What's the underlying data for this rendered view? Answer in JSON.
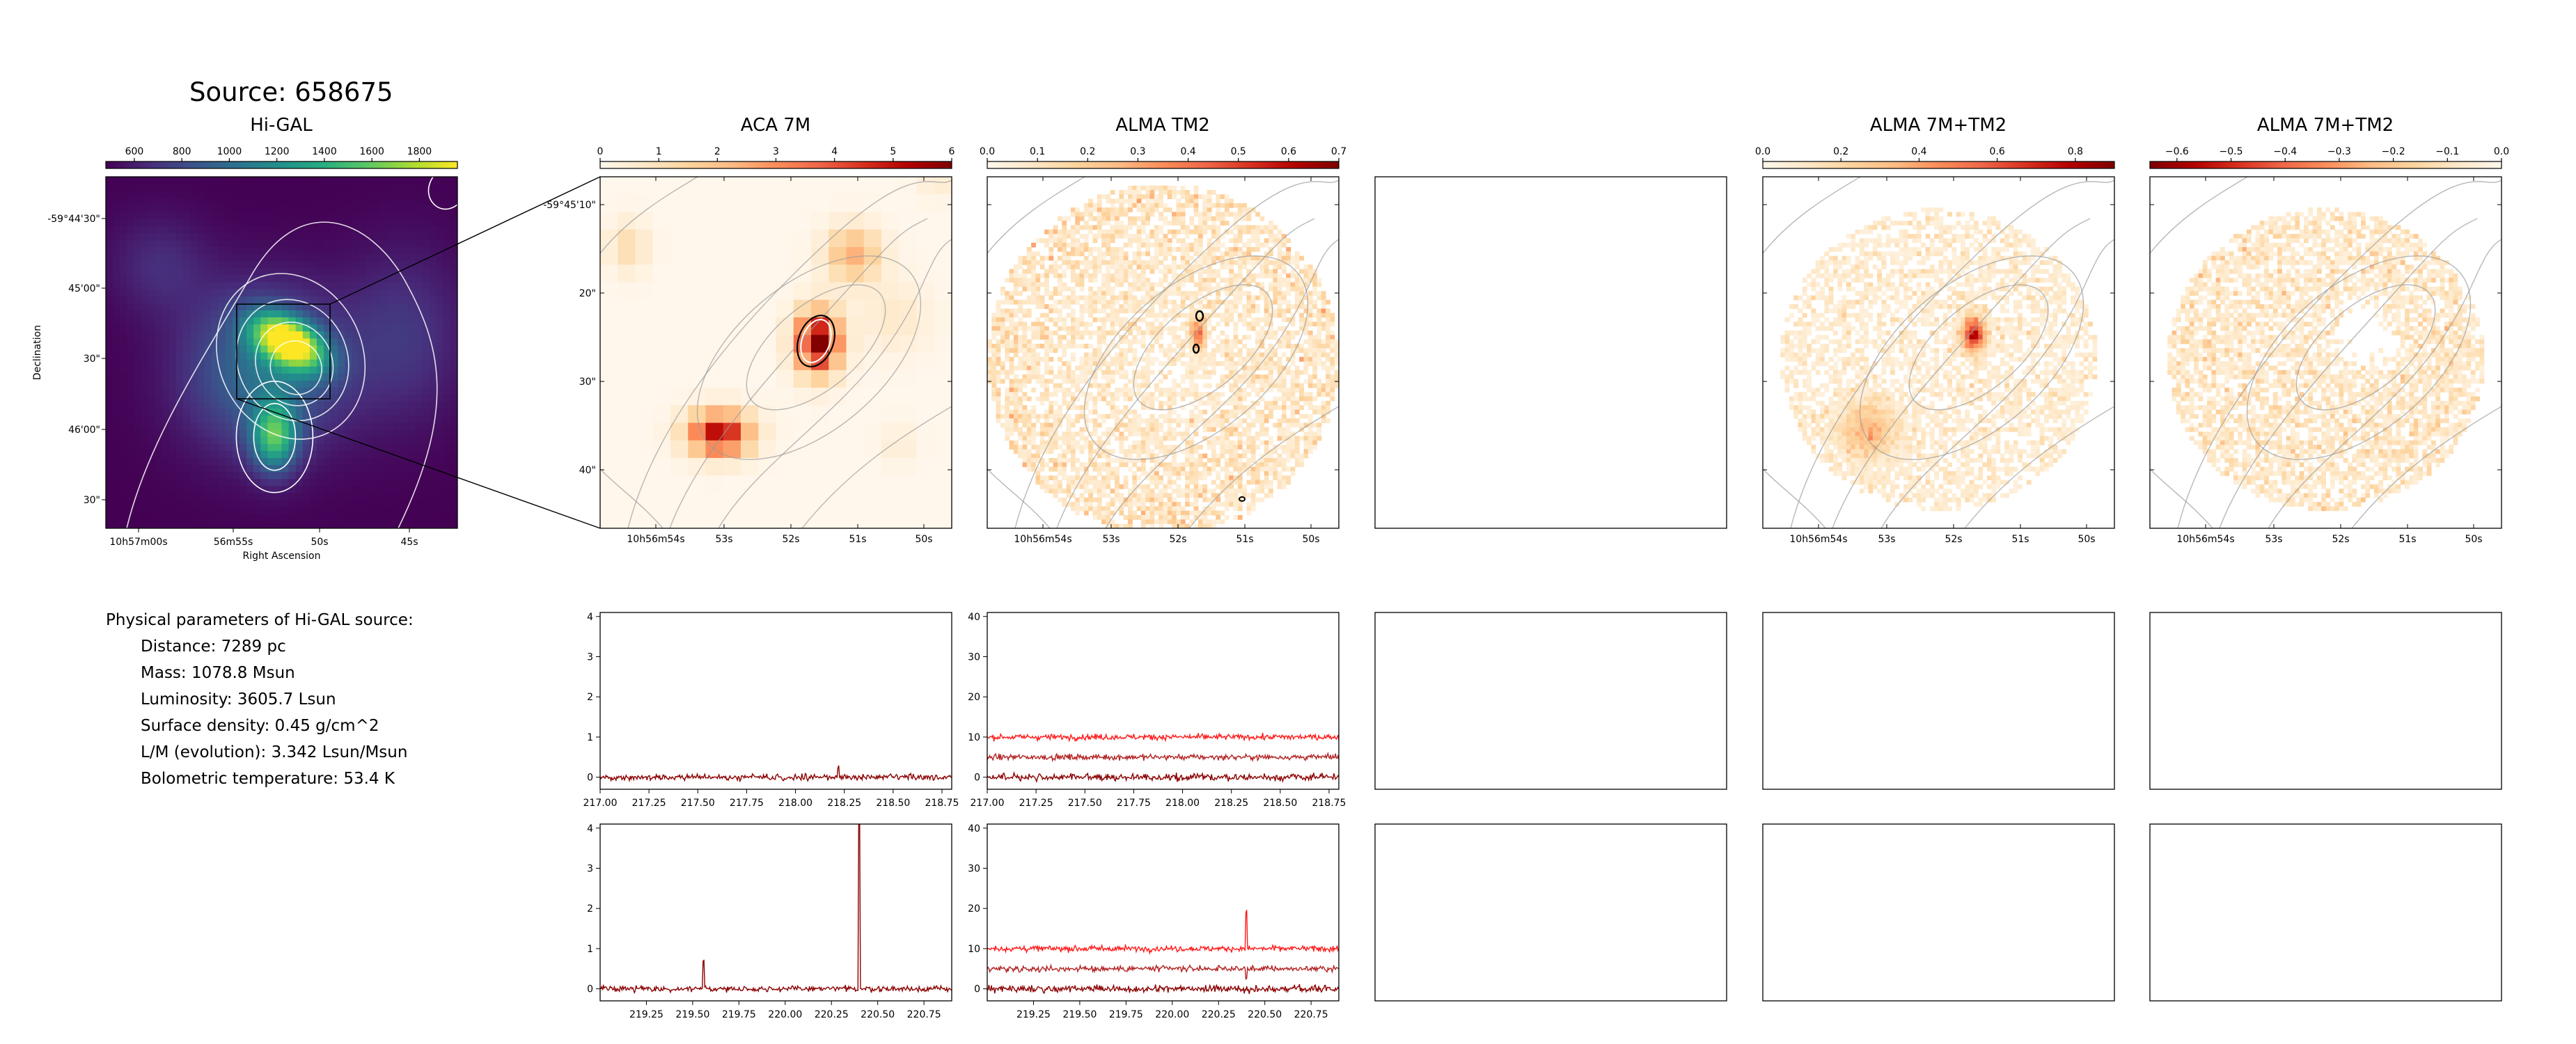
{
  "source_title": "Source: 658675",
  "panel_titles": {
    "higal": "Hi-GAL",
    "aca": "ACA 7M",
    "tm2": "ALMA TM2",
    "combo_pos": "ALMA 7M+TM2",
    "combo_neg": "ALMA 7M+TM2"
  },
  "colors": {
    "viridis": [
      "#440154",
      "#472d7b",
      "#3b528b",
      "#2c728e",
      "#21918c",
      "#28ae80",
      "#5ec962",
      "#addc30",
      "#fde725"
    ],
    "orrd": [
      "#fff7ec",
      "#fee8c8",
      "#fdd49e",
      "#fdbb84",
      "#fc8d59",
      "#ef6548",
      "#d7301f",
      "#b30000",
      "#7f0000"
    ],
    "spectrum_series": [
      "#8b0000",
      "#b22222",
      "#ff1a1a"
    ]
  },
  "physical": {
    "heading": "Physical parameters of Hi-GAL source:",
    "lines": [
      "Distance: 7289 pc",
      "Mass: 1078.8 Msun",
      "Luminosity: 3605.7 Lsun",
      "Surface density: 0.45 g/cm^2",
      "L/M (evolution): 3.342 Lsun/Msun",
      "Bolometric temperature: 53.4 K"
    ]
  },
  "chart_data": [
    {
      "type": "heatmap",
      "title": "Hi-GAL",
      "colormap": "viridis",
      "colorbar_ticks": [
        "600",
        "800",
        "1000",
        "1200",
        "1400",
        "1600",
        "1800"
      ],
      "colorbar_range": [
        480,
        1960
      ],
      "xlabel": "Right Ascension",
      "ylabel": "Declination",
      "x_ticks": [
        "10h57m00s",
        "56m55s",
        "50s",
        "45s"
      ],
      "y_ticks": [
        "-59°44'30\"",
        "45'00\"",
        "30\"",
        "46'00\"",
        "30\""
      ],
      "peaks": [
        {
          "ra_s": 53.3,
          "dec": "-59°45'28\"",
          "value": 1900
        },
        {
          "ra_s": 54.4,
          "dec": "-59°46'05\"",
          "value": 1500
        }
      ]
    },
    {
      "type": "heatmap",
      "title": "ACA 7M",
      "colormap": "OrRd",
      "colorbar_ticks": [
        "0",
        "1",
        "2",
        "3",
        "4",
        "5",
        "6"
      ],
      "colorbar_range": [
        0,
        6
      ],
      "x_ticks": [
        "10h56m54s",
        "53s",
        "52s",
        "51s",
        "50s"
      ],
      "y_ticks": [
        "-59°45'10\"",
        "20\"",
        "30\"",
        "40\""
      ],
      "peaks": [
        {
          "ra_s": 51.6,
          "dec": "-59°45'25\"",
          "value": 6.0
        },
        {
          "ra_s": 52.9,
          "dec": "-59°45'36\"",
          "value": 5.2
        }
      ]
    },
    {
      "type": "heatmap",
      "title": "ALMA TM2",
      "colormap": "OrRd",
      "colorbar_ticks": [
        "0.0",
        "0.1",
        "0.2",
        "0.3",
        "0.4",
        "0.5",
        "0.6",
        "0.7"
      ],
      "colorbar_range": [
        0.0,
        0.7
      ],
      "x_ticks": [
        "10h56m54s",
        "53s",
        "52s",
        "51s",
        "50s"
      ],
      "note": "noisy field with compact source"
    },
    {
      "type": "heatmap",
      "title": "ALMA 7M+TM2",
      "colormap": "OrRd",
      "colorbar_ticks": [
        "0.0",
        "0.2",
        "0.4",
        "0.6",
        "0.8"
      ],
      "colorbar_range": [
        0.0,
        0.9
      ],
      "x_ticks": [
        "10h56m54s",
        "53s",
        "52s",
        "51s",
        "50s"
      ]
    },
    {
      "type": "heatmap",
      "title": "ALMA 7M+TM2",
      "colormap": "OrRd_r",
      "colorbar_ticks": [
        "−0.6",
        "−0.5",
        "−0.4",
        "−0.3",
        "−0.2",
        "−0.1",
        "0.0"
      ],
      "colorbar_range": [
        -0.65,
        0.0
      ],
      "x_ticks": [
        "10h56m54s",
        "53s",
        "52s",
        "51s",
        "50s"
      ]
    },
    {
      "type": "line",
      "panel": "ACA 7M spectrum (lower sideband)",
      "xlim": [
        217.0,
        218.8
      ],
      "ylim": [
        -0.3,
        4.1
      ],
      "x_ticks": [
        "217.00",
        "217.25",
        "217.50",
        "217.75",
        "218.00",
        "218.25",
        "218.50",
        "218.75"
      ],
      "y_ticks": [
        "0",
        "1",
        "2",
        "3",
        "4"
      ],
      "series": [
        {
          "offset": 0,
          "noise": 0.05,
          "lines": [
            {
              "x": 218.22,
              "peak": 0.25
            }
          ]
        }
      ]
    },
    {
      "type": "line",
      "panel": "ALMA TM2 spectrum (lower sideband)",
      "xlim": [
        217.0,
        218.8
      ],
      "ylim": [
        -3,
        41
      ],
      "x_ticks": [
        "217.00",
        "217.25",
        "217.50",
        "217.75",
        "218.00",
        "218.25",
        "218.50",
        "218.75"
      ],
      "y_ticks": [
        "0",
        "10",
        "20",
        "30",
        "40"
      ],
      "series": [
        {
          "offset": 0,
          "noise": 0.6,
          "lines": []
        },
        {
          "offset": 5,
          "noise": 0.5,
          "lines": []
        },
        {
          "offset": 10,
          "noise": 0.5,
          "lines": []
        }
      ]
    },
    {
      "type": "line",
      "panel": "ACA 7M spectrum (upper sideband)",
      "xlim": [
        219.0,
        220.9
      ],
      "ylim": [
        -0.3,
        4.1
      ],
      "x_ticks": [
        "219.25",
        "219.50",
        "219.75",
        "220.00",
        "220.25",
        "220.50",
        "220.75"
      ],
      "y_ticks": [
        "0",
        "1",
        "2",
        "3",
        "4"
      ],
      "series": [
        {
          "offset": 0,
          "noise": 0.05,
          "lines": [
            {
              "x": 219.56,
              "peak": 0.7
            },
            {
              "x": 220.4,
              "peak": 4.5
            }
          ]
        }
      ]
    },
    {
      "type": "line",
      "panel": "ALMA TM2 spectrum (upper sideband)",
      "xlim": [
        219.0,
        220.9
      ],
      "ylim": [
        -3,
        41
      ],
      "x_ticks": [
        "219.25",
        "219.50",
        "219.75",
        "220.00",
        "220.25",
        "220.50",
        "220.75"
      ],
      "y_ticks": [
        "0",
        "10",
        "20",
        "30",
        "40"
      ],
      "series": [
        {
          "offset": 0,
          "noise": 0.6,
          "lines": []
        },
        {
          "offset": 5,
          "noise": 0.5,
          "lines": [
            {
              "x": 220.4,
              "peak": -2.5
            }
          ]
        },
        {
          "offset": 10,
          "noise": 0.5,
          "lines": [
            {
              "x": 220.4,
              "peak": 9
            }
          ]
        }
      ]
    }
  ]
}
